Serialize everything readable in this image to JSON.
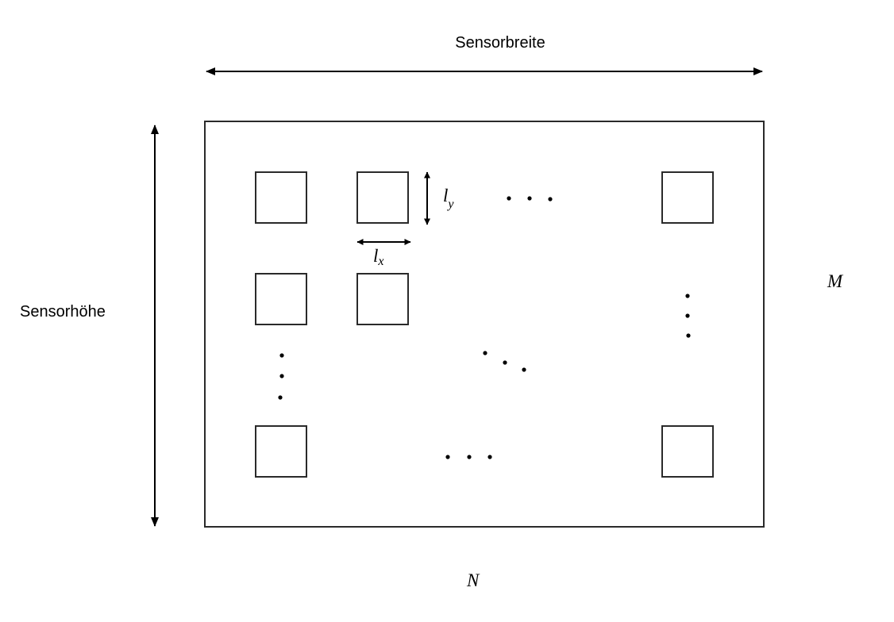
{
  "labels": {
    "sensor_width": "Sensorbreite",
    "sensor_height": "Sensorhöhe",
    "pixel_length_y": "l",
    "pixel_length_y_sub": "y",
    "pixel_length_x": "l",
    "pixel_length_x_sub": "x",
    "rows": "M",
    "columns": "N"
  },
  "colors": {
    "stroke": "#2a2a2a",
    "text": "#000000",
    "background": "#ffffff"
  }
}
